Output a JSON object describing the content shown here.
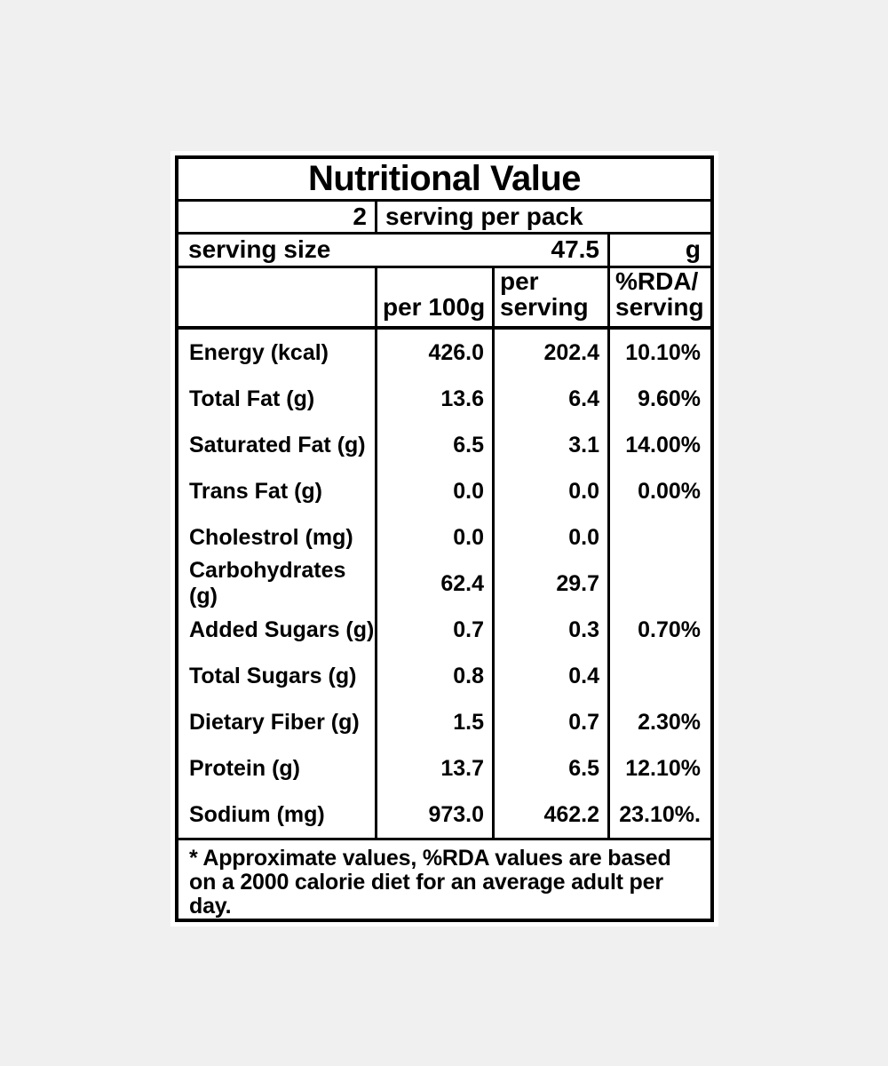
{
  "page": {
    "background_color": "#f0f0f0",
    "panel_background": "#ffffff",
    "border_color": "#000000"
  },
  "nutrition_label": {
    "title": "Nutritional Value",
    "servings_per_pack": {
      "count": "2",
      "text": "serving per pack"
    },
    "serving_size": {
      "label": "serving size",
      "value": "47.5",
      "unit": "g"
    },
    "column_headers": {
      "per_100g": "per 100g",
      "per_serving_line1": "per",
      "per_serving_line2": "serving",
      "rda_line1": "%RDA/",
      "rda_line2": "serving"
    },
    "rows": [
      {
        "name": "Energy (kcal)",
        "per_100g": "426.0",
        "per_serving": "202.4",
        "rda": "10.10%"
      },
      {
        "name": "Total Fat (g)",
        "per_100g": "13.6",
        "per_serving": "6.4",
        "rda": "9.60%"
      },
      {
        "name": "Saturated Fat (g)",
        "per_100g": "6.5",
        "per_serving": "3.1",
        "rda": "14.00%"
      },
      {
        "name": "Trans Fat (g)",
        "per_100g": "0.0",
        "per_serving": "0.0",
        "rda": "0.00%"
      },
      {
        "name": "Cholestrol (mg)",
        "per_100g": "0.0",
        "per_serving": "0.0",
        "rda": ""
      },
      {
        "name": "Carbohydrates (g)",
        "per_100g": "62.4",
        "per_serving": "29.7",
        "rda": ""
      },
      {
        "name": "Added Sugars (g)",
        "per_100g": "0.7",
        "per_serving": "0.3",
        "rda": "0.70%"
      },
      {
        "name": "Total Sugars (g)",
        "per_100g": "0.8",
        "per_serving": "0.4",
        "rda": ""
      },
      {
        "name": "Dietary Fiber (g)",
        "per_100g": "1.5",
        "per_serving": "0.7",
        "rda": "2.30%"
      },
      {
        "name": "Protein (g)",
        "per_100g": "13.7",
        "per_serving": "6.5",
        "rda": "12.10%"
      },
      {
        "name": "Sodium (mg)",
        "per_100g": "973.0",
        "per_serving": "462.2",
        "rda": "23.10%."
      }
    ],
    "footnote": "* Approximate values, %RDA values are based on a 2000 calorie diet for an average adult per day."
  }
}
